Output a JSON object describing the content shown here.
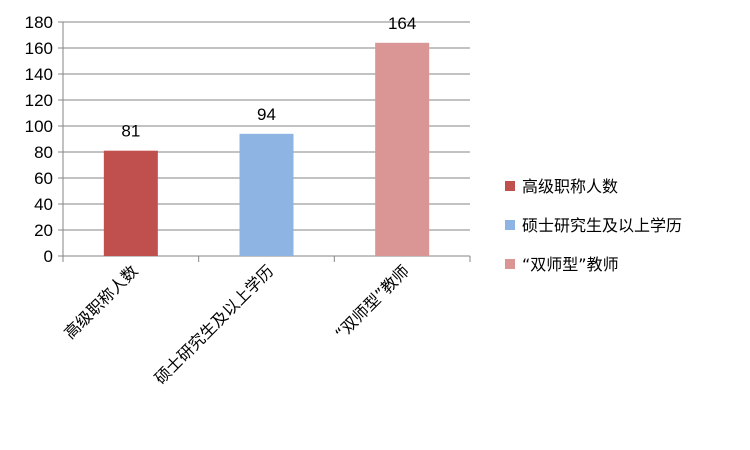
{
  "chart_data": {
    "type": "bar",
    "categories": [
      "高级职称人数",
      "硕士研究生及以上学历",
      "“双师型”教师"
    ],
    "values": [
      81,
      94,
      164
    ],
    "colors": [
      "#c0504d",
      "#8eb4e3",
      "#d99694"
    ],
    "ylim": [
      0,
      180
    ],
    "y_ticks": [
      0,
      20,
      40,
      60,
      80,
      100,
      120,
      140,
      160,
      180
    ],
    "grid": true,
    "legend_position": "right",
    "data_labels": true
  }
}
